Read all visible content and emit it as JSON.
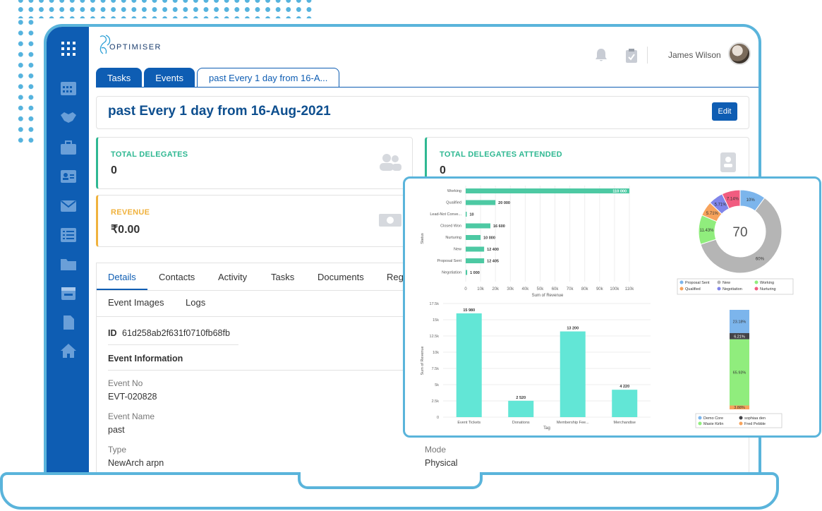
{
  "header": {
    "logo_text": "OPTIMISER",
    "user_name": "James Wilson"
  },
  "tabs": [
    {
      "label": "Tasks"
    },
    {
      "label": "Events"
    },
    {
      "label": "past Every 1 day from 16-A..."
    }
  ],
  "title": {
    "text": "past Every 1 day from 16-Aug-2021",
    "edit_label": "Edit"
  },
  "stats": {
    "total_delegates": {
      "label": "TOTAL DELEGATES",
      "value": "0"
    },
    "total_attended": {
      "label": "TOTAL DELEGATES ATTENDED",
      "value": "0"
    },
    "revenue": {
      "label": "REVENUE",
      "value": "₹0.00"
    }
  },
  "detail_tabs": [
    "Details",
    "Contacts",
    "Activity",
    "Tasks",
    "Documents",
    "Regi"
  ],
  "detail_tabs2": [
    "Event Images",
    "Logs"
  ],
  "details": {
    "id_label": "ID",
    "id_value": "61d258ab2f631f0710fb68fb",
    "section_title": "Event Information",
    "event_no_label": "Event No",
    "event_no_value": "EVT-020828",
    "event_name_label": "Event Name",
    "event_name_value": "past",
    "type_label": "Type",
    "type_value": "NewArch arpn",
    "mode_label": "Mode",
    "mode_value": "Physical"
  },
  "colors": {
    "primary": "#0e5db3",
    "frame": "#5ab4db",
    "green_label": "#2fb892",
    "orange_label": "#f0b23d",
    "bar_green": "#4dc9a3",
    "bar_cyan": "#62e6d6"
  },
  "chart_data": [
    {
      "type": "bar",
      "orientation": "horizontal",
      "categories": [
        "Working",
        "Qualified",
        "Lead-Not Conve...",
        "Closed Won",
        "Nurturing",
        "New",
        "Proposal Sent",
        "Negotiation"
      ],
      "values": [
        110000,
        20000,
        10,
        16600,
        10000,
        12400,
        12405,
        1000
      ],
      "data_labels": [
        "110 000",
        "20 000",
        "10",
        "16 600",
        "10 000",
        "12 400",
        "12 405",
        "1 000"
      ],
      "ylabel": "Status",
      "xlabel": "Sum of Revenue",
      "x_ticks": [
        "0",
        "10k",
        "20k",
        "30k",
        "40k",
        "50k",
        "60k",
        "70k",
        "80k",
        "90k",
        "100k",
        "110k"
      ],
      "xlim": [
        0,
        110000
      ]
    },
    {
      "type": "pie",
      "variant": "donut",
      "center_label": "70",
      "slices": [
        {
          "name": "Proposal Sent",
          "value": 10,
          "label": "10%",
          "color": "#7cb5ec"
        },
        {
          "name": "New",
          "value": 60,
          "label": "60%",
          "color": "#b5b5b5"
        },
        {
          "name": "Working",
          "value": 11.43,
          "label": "11.43%",
          "color": "#90ed7d"
        },
        {
          "name": "Qualified",
          "value": 5.71,
          "label": "5.71%",
          "color": "#f7a35c"
        },
        {
          "name": "Negotiation",
          "value": 5.71,
          "label": "5.71%",
          "color": "#8085e9"
        },
        {
          "name": "Nurturing",
          "value": 7.14,
          "label": "7.14%",
          "color": "#f15c80"
        }
      ],
      "legend": "bottom"
    },
    {
      "type": "bar",
      "orientation": "vertical",
      "categories": [
        "Event Tickets",
        "Donations",
        "Membership Fee...",
        "Merchandise"
      ],
      "values": [
        15980,
        2520,
        13200,
        4220
      ],
      "data_labels": [
        "15 980",
        "2 520",
        "13 200",
        "4 220"
      ],
      "xlabel": "Tag",
      "ylabel": "Sum of Revenue",
      "y_ticks": [
        "0",
        "2.5k",
        "5k",
        "7.5k",
        "10k",
        "12.5k",
        "15k",
        "17.5k"
      ],
      "ylim": [
        0,
        17500
      ]
    },
    {
      "type": "bar",
      "variant": "stacked-100",
      "segments": [
        {
          "name": "Demo Core",
          "value": 23.18,
          "label": "23.18%",
          "color": "#7cb5ec"
        },
        {
          "name": "sophiaa den",
          "value": 6.21,
          "label": "6.21%",
          "color": "#434348"
        },
        {
          "name": "Maxie Kirlin",
          "value": 65.93,
          "label": "65.93%",
          "color": "#90ed7d"
        },
        {
          "name": "Fred Pebble",
          "value": 3.88,
          "label": "3.88%",
          "color": "#f7a35c"
        }
      ],
      "legend": "bottom"
    }
  ]
}
